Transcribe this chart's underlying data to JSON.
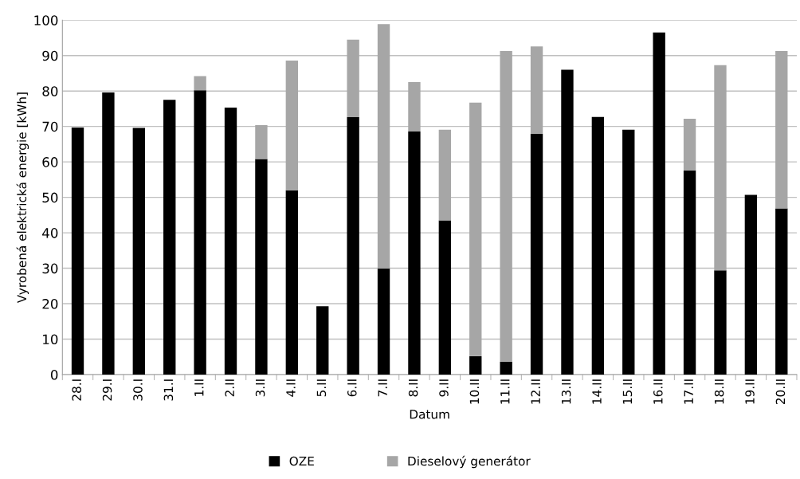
{
  "chart_data": {
    "type": "bar",
    "stacked": true,
    "xlabel": "Datum",
    "ylabel": "Vyrobená elektrická energie [kWh]",
    "categories": [
      "28.I",
      "29.I",
      "30.I",
      "31.I",
      "1.II",
      "2.II",
      "3.II",
      "4.II",
      "5.II",
      "6.II",
      "7.II",
      "8.II",
      "9.II",
      "10.II",
      "11.II",
      "12.II",
      "13.II",
      "14.II",
      "15.II",
      "16.II",
      "17.II",
      "18.II",
      "19.II",
      "20.II"
    ],
    "series": [
      {
        "name": "OZE",
        "color": "#000000",
        "values": [
          69.7,
          79.6,
          69.6,
          77.5,
          80.2,
          75.3,
          60.8,
          52.0,
          19.3,
          72.6,
          29.9,
          68.6,
          43.5,
          5.2,
          3.6,
          67.9,
          86.0,
          72.7,
          69.1,
          96.5,
          57.6,
          29.4,
          50.7,
          46.9
        ]
      },
      {
        "name": "Dieselový generátor",
        "color": "#a6a6a6",
        "values": [
          0,
          0,
          0,
          0,
          4.0,
          0,
          9.6,
          36.6,
          0,
          21.9,
          69.0,
          13.9,
          25.6,
          71.5,
          87.7,
          24.7,
          0,
          0,
          0,
          0,
          14.6,
          57.9,
          0,
          44.4
        ]
      }
    ],
    "ylim": [
      0,
      100
    ],
    "yticks": [
      0,
      10,
      20,
      30,
      40,
      50,
      60,
      70,
      80,
      90,
      100
    ],
    "grid": "y",
    "legend": "bottom"
  }
}
